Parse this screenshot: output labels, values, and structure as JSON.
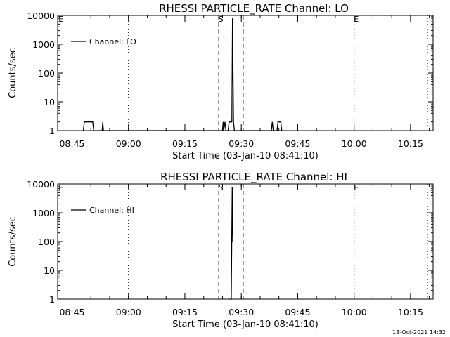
{
  "footer_timestamp": "13-Oct-2021 14:32",
  "chart_data": [
    {
      "type": "line",
      "title": "RHESSI PARTICLE_RATE Channel: LO",
      "xlabel": "Start Time (03-Jan-10 08:41:10)",
      "ylabel": "Counts/sec",
      "yscale": "log",
      "xlim": [
        "08:41:10",
        "10:21:00"
      ],
      "ylim": [
        1,
        10000
      ],
      "x_ticks": [
        "08:45",
        "09:00",
        "09:15",
        "09:30",
        "09:45",
        "10:00",
        "10:15"
      ],
      "y_ticks": [
        "1",
        "10",
        "100",
        "1000",
        "10000"
      ],
      "vlines_dotted": [
        "09:00",
        "10:00",
        "10:19:30"
      ],
      "vlines_dashed": [
        "09:24:00",
        "09:30:30"
      ],
      "markers": [
        {
          "label": "E",
          "time": "08:41:30"
        },
        {
          "label": "S",
          "time": "09:24:00"
        },
        {
          "label": "E",
          "time": "10:00"
        }
      ],
      "legend": {
        "entry": "Channel: LO",
        "placement": "top-left"
      },
      "series": [
        {
          "name": "Channel: LO",
          "points": [
            [
              "08:48:00",
              1
            ],
            [
              "08:48:15",
              2
            ],
            [
              "08:50:30",
              2
            ],
            [
              "08:50:45",
              1
            ],
            [
              "08:53:00",
              1
            ],
            [
              "08:53:10",
              2
            ],
            [
              "08:53:20",
              1
            ],
            [
              "09:25:00",
              1
            ],
            [
              "09:25:10",
              2
            ],
            [
              "09:25:20",
              1
            ],
            [
              "09:25:40",
              2
            ],
            [
              "09:25:55",
              1
            ],
            [
              "09:26:30",
              1
            ],
            [
              "09:26:45",
              2
            ],
            [
              "09:27:30",
              2
            ],
            [
              "09:27:40",
              8000
            ],
            [
              "09:27:55",
              2
            ],
            [
              "09:28:10",
              1
            ],
            [
              "09:38:00",
              1
            ],
            [
              "09:38:15",
              2
            ],
            [
              "09:38:30",
              1
            ],
            [
              "09:39:30",
              1
            ],
            [
              "09:39:45",
              2
            ],
            [
              "09:40:30",
              2
            ],
            [
              "09:40:45",
              1
            ]
          ]
        }
      ]
    },
    {
      "type": "line",
      "title": "RHESSI PARTICLE_RATE Channel: HI",
      "xlabel": "Start Time (03-Jan-10 08:41:10)",
      "ylabel": "Counts/sec",
      "yscale": "log",
      "xlim": [
        "08:41:10",
        "10:21:00"
      ],
      "ylim": [
        1,
        10000
      ],
      "x_ticks": [
        "08:45",
        "09:00",
        "09:15",
        "09:30",
        "09:45",
        "10:00",
        "10:15"
      ],
      "y_ticks": [
        "1",
        "10",
        "100",
        "1000",
        "10000"
      ],
      "vlines_dotted": [
        "09:00",
        "10:00",
        "10:19:30"
      ],
      "vlines_dashed": [
        "09:24:00",
        "09:30:30"
      ],
      "markers": [
        {
          "label": "E",
          "time": "08:41:30"
        },
        {
          "label": "S",
          "time": "09:24:00"
        },
        {
          "label": "E",
          "time": "10:00"
        }
      ],
      "legend": {
        "entry": "Channel: HI",
        "placement": "top-left"
      },
      "series": [
        {
          "name": "Channel: HI",
          "points": [
            [
              "09:26:50",
              1
            ],
            [
              "09:27:20",
              1
            ],
            [
              "09:27:35",
              8000
            ],
            [
              "09:27:45",
              100
            ]
          ]
        }
      ]
    }
  ]
}
